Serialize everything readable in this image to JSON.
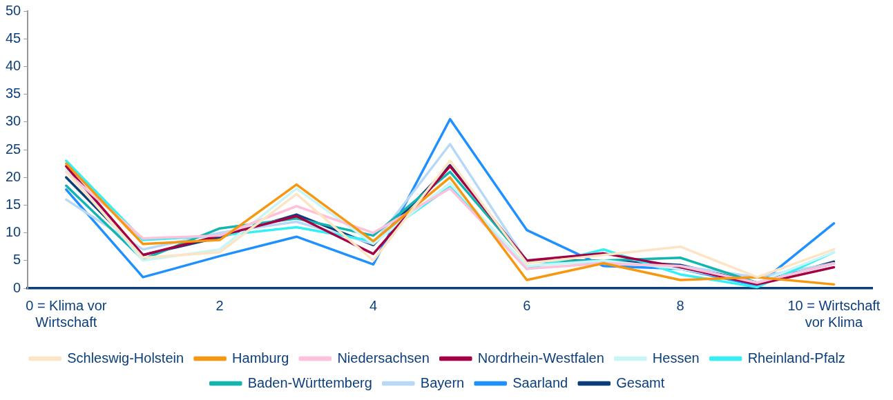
{
  "chart_data": {
    "type": "line",
    "categories": [
      "0 = Klima vor Wirtschaft",
      null,
      "2",
      null,
      "4",
      null,
      "6",
      null,
      "8",
      null,
      "10 = Wirtschaft vor Klima"
    ],
    "ylim": [
      0,
      50
    ],
    "yticks": [
      0,
      5,
      10,
      15,
      20,
      25,
      30,
      35,
      40,
      45,
      50
    ],
    "grid": false,
    "legend": "bottom",
    "marker": "none",
    "line_style": "solid",
    "series": [
      {
        "name": "Schleswig-Holstein",
        "color": "#fde4c4",
        "values": [
          21,
          5.5,
          6.5,
          17,
          5,
          23,
          4.5,
          6,
          7.5,
          2,
          7
        ]
      },
      {
        "name": "Hamburg",
        "color": "#f7960f",
        "values": [
          22.5,
          8,
          8.7,
          18.7,
          8.5,
          20,
          1.5,
          4.5,
          1.5,
          2,
          0.7
        ]
      },
      {
        "name": "Niedersachsen",
        "color": "#ffc0d9",
        "values": [
          21,
          9,
          9.5,
          14.8,
          10,
          18,
          3.5,
          4.5,
          4,
          1,
          4.5
        ]
      },
      {
        "name": "Nordrhein-Westfalen",
        "color": "#a50044",
        "values": [
          22,
          6,
          9.5,
          13,
          6.2,
          22,
          5,
          6.3,
          3.8,
          0.7,
          3.8
        ]
      },
      {
        "name": "Hessen",
        "color": "#c8f5f8",
        "values": [
          21.5,
          5,
          7,
          18,
          8,
          19,
          4,
          5,
          3.5,
          1,
          6.5
        ]
      },
      {
        "name": "Rheinland-Pfalz",
        "color": "#33f0f5",
        "values": [
          23,
          8.7,
          9.5,
          11,
          8.5,
          18.3,
          3.5,
          7,
          2.5,
          0.2,
          6.5
        ]
      },
      {
        "name": "Baden-Württemberg",
        "color": "#12b5b0",
        "values": [
          18.5,
          5.2,
          10.8,
          12.6,
          9.5,
          21,
          4.8,
          5,
          5.5,
          1,
          4.5
        ]
      },
      {
        "name": "Bayern",
        "color": "#b8d8f8",
        "values": [
          16,
          7,
          10,
          12,
          8,
          26,
          4.8,
          4.5,
          4,
          2,
          4.5
        ]
      },
      {
        "name": "Saarland",
        "color": "#1e90ff",
        "values": [
          17.8,
          2,
          5.8,
          9.3,
          4.3,
          30.5,
          10.5,
          4,
          3.5,
          0.5,
          11.7
        ]
      },
      {
        "name": "Gesamt",
        "color": "#0c3f7a",
        "values": [
          20,
          6,
          9.2,
          13.3,
          7.8,
          22.2,
          5,
          5,
          4.2,
          1,
          4.8
        ]
      }
    ]
  }
}
